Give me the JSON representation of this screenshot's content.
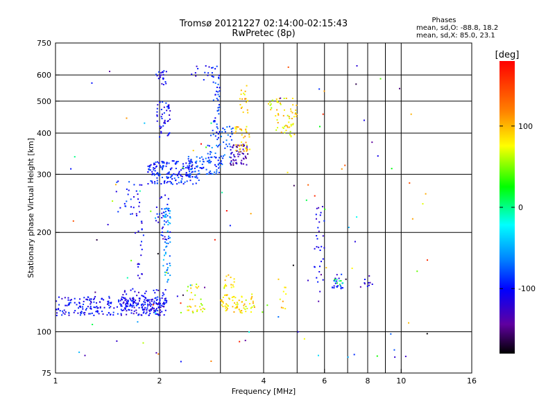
{
  "title_line1": "Tromsø 20121227 02:14:00-02:15:43",
  "title_line2": "RwPretec (8p)",
  "phase_header": "Phases",
  "phase_o": "mean, sd,O: -88.8, 18.2",
  "phase_x": "mean, sd,X:  85.0, 23.1",
  "chart_data": {
    "type": "scatter",
    "title": "Tromsø 20121227 02:14:00-02:15:43",
    "subtitle": "RwPretec (8p)",
    "xlabel": "Frequency [MHz]",
    "ylabel": "Stationary phase Virtual Height [km]",
    "xscale": "log",
    "yscale": "log",
    "xlim": [
      1,
      16
    ],
    "ylim": [
      75,
      750
    ],
    "xticks": [
      1,
      2,
      4,
      6,
      8,
      10,
      16
    ],
    "xgrid": [
      2,
      3,
      4,
      5,
      6,
      7,
      8,
      9,
      10
    ],
    "yticks": [
      75,
      100,
      200,
      300,
      400,
      500,
      600,
      750
    ],
    "ygrid": [
      100,
      200,
      300,
      400,
      500,
      600
    ],
    "grid": true,
    "colorbar": {
      "label": "[deg]",
      "range": [
        -180,
        180
      ],
      "ticks": [
        -100,
        0,
        100
      ],
      "colors": [
        "#ff0000",
        "#ff8000",
        "#ffff00",
        "#00ff00",
        "#00ffff",
        "#0080ff",
        "#0000ff",
        "#6000a0",
        "#000000"
      ]
    },
    "clusters": [
      {
        "x": [
          1.0,
          2.1
        ],
        "y": [
          112,
          128
        ],
        "n": 260,
        "phase": -90
      },
      {
        "x": [
          1.55,
          2.1
        ],
        "y": [
          112,
          135
        ],
        "n": 90,
        "phase": -100
      },
      {
        "x": [
          1.85,
          2.6
        ],
        "y": [
          280,
          330
        ],
        "n": 170,
        "phase": -80
      },
      {
        "x": [
          2.4,
          3.0
        ],
        "y": [
          300,
          340
        ],
        "n": 70,
        "phase": -65
      },
      {
        "x": [
          2.75,
          3.3
        ],
        "y": [
          320,
          420
        ],
        "n": 55,
        "phase": -60
      },
      {
        "x": [
          2.85,
          3.0
        ],
        "y": [
          380,
          640
        ],
        "n": 45,
        "phase": -75
      },
      {
        "x": [
          3.2,
          3.6
        ],
        "y": [
          320,
          370
        ],
        "n": 55,
        "phase": -130
      },
      {
        "x": [
          3.3,
          3.65
        ],
        "y": [
          350,
          420
        ],
        "n": 40,
        "phase": 110
      },
      {
        "x": [
          3.4,
          3.6
        ],
        "y": [
          450,
          560
        ],
        "n": 18,
        "phase": 105
      },
      {
        "x": [
          2.45,
          2.85
        ],
        "y": [
          580,
          640
        ],
        "n": 14,
        "phase": -100
      },
      {
        "x": [
          1.95,
          2.15
        ],
        "y": [
          380,
          500
        ],
        "n": 45,
        "phase": -90
      },
      {
        "x": [
          1.95,
          2.1
        ],
        "y": [
          560,
          620
        ],
        "n": 20,
        "phase": -95
      },
      {
        "x": [
          2.05,
          2.15
        ],
        "y": [
          140,
          240
        ],
        "n": 55,
        "phase": -40
      },
      {
        "x": [
          1.95,
          2.15
        ],
        "y": [
          190,
          260
        ],
        "n": 30,
        "phase": -90
      },
      {
        "x": [
          1.7,
          1.8
        ],
        "y": [
          140,
          290
        ],
        "n": 30,
        "phase": -100
      },
      {
        "x": [
          1.5,
          1.7
        ],
        "y": [
          225,
          290
        ],
        "n": 20,
        "phase": -80
      },
      {
        "x": [
          2.4,
          2.7
        ],
        "y": [
          112,
          140
        ],
        "n": 30,
        "phase": 90
      },
      {
        "x": [
          3.0,
          3.8
        ],
        "y": [
          114,
          130
        ],
        "n": 70,
        "phase": 100
      },
      {
        "x": [
          3.05,
          3.3
        ],
        "y": [
          135,
          150
        ],
        "n": 15,
        "phase": 95
      },
      {
        "x": [
          4.3,
          5.0
        ],
        "y": [
          390,
          510
        ],
        "n": 55,
        "phase": 100
      },
      {
        "x": [
          4.1,
          4.25
        ],
        "y": [
          470,
          510
        ],
        "n": 8,
        "phase": 90
      },
      {
        "x": [
          5.6,
          6.0
        ],
        "y": [
          130,
          240
        ],
        "n": 30,
        "phase": -100
      },
      {
        "x": [
          6.3,
          6.8
        ],
        "y": [
          135,
          150
        ],
        "n": 20,
        "phase": -90
      },
      {
        "x": [
          7.6,
          8.3
        ],
        "y": [
          135,
          150
        ],
        "n": 10,
        "phase": -110
      },
      {
        "x": [
          6.4,
          6.8
        ],
        "y": [
          138,
          145
        ],
        "n": 8,
        "phase": 30
      },
      {
        "x": [
          4.4,
          4.7
        ],
        "y": [
          110,
          150
        ],
        "n": 10,
        "phase": 110
      },
      {
        "x": [
          1.1,
          12
        ],
        "y": [
          80,
          650
        ],
        "n": 110,
        "phase": 0,
        "scatter": true
      }
    ]
  }
}
